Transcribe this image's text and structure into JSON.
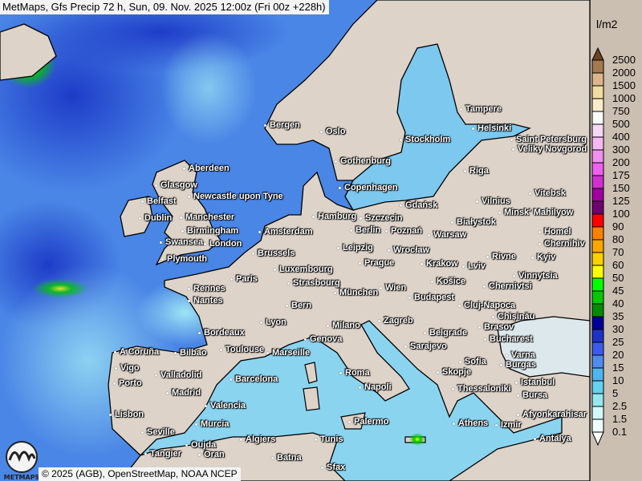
{
  "title": "MetMaps, Gfs Precip 72 h, Sun, 09. Nov. 2025 12:00z (Fri 00z +228h)",
  "copyright": "© 2025 (AGB), OpenStreetMap, NOAA NCEP",
  "logo_text": "METMAPS",
  "legend": {
    "unit": "l/m2",
    "top_arrow_color": "#6b4422",
    "bottom_arrow_color": "#ffffff",
    "labels": [
      "2500",
      "2000",
      "1500",
      "1000",
      "750",
      "500",
      "400",
      "300",
      "200",
      "175",
      "150",
      "125",
      "100",
      "90",
      "80",
      "70",
      "60",
      "50",
      "45",
      "40",
      "35",
      "30",
      "25",
      "20",
      "15",
      "10",
      "5",
      "2.5",
      "1.5",
      "0.1"
    ],
    "colors": [
      "#a57a50",
      "#dcb68a",
      "#f0dca0",
      "#f8eccc",
      "#fafafa",
      "#f5d8f5",
      "#f4b8f4",
      "#f090f0",
      "#ee60ee",
      "#d030d0",
      "#a000a0",
      "#700070",
      "#ff0000",
      "#ff7f00",
      "#ffa500",
      "#ffd000",
      "#ffff00",
      "#00ff00",
      "#00c800",
      "#008c00",
      "#000096",
      "#1e32c8",
      "#3c5af0",
      "#508cf0",
      "#50b4f0",
      "#64d2f0",
      "#96e6f0",
      "#d2f8f8",
      "#eefefe"
    ]
  },
  "colors": {
    "land": "#ddd3c9",
    "ocean_precip": "#3f7fe0",
    "light_precip": "#8fd8f0"
  },
  "cities": [
    "Bergen",
    "Oslo",
    "Tampere",
    "Helsinki",
    "Saint Petersburg",
    "Stockholm",
    "Veliky Novgorod",
    "Aberdeen",
    "Gothenburg",
    "Riga",
    "Glasgow",
    "Newcastle upon Tyne",
    "Copenhagen",
    "Vilnius",
    "Vitebsk",
    "Belfast",
    "Gdańsk",
    "Minsk' Mahilyow",
    "Dublin",
    "Manchester",
    "Hamburg",
    "Szczecin",
    "Białystok",
    "Birmingham",
    "Amsterdam",
    "Berlin",
    "Poznań",
    "Warsaw",
    "Homel",
    "Swansea",
    "London",
    "Leipzig",
    "Wrocław",
    "Chernihiv",
    "Plymouth",
    "Brussels",
    "Prague",
    "Krakow",
    "Lviv",
    "Rivne",
    "Kyiv",
    "Luxembourg",
    "Vinnytsia",
    "Paris",
    "Strasbourg",
    "München",
    "Wien",
    "Košice",
    "Chernivtsi",
    "Rennes",
    "Budapest",
    "Nantes",
    "Cluj-Napoca",
    "Chișinău",
    "Bern",
    "Lyon",
    "Milano",
    "Brasov",
    "Zagreb",
    "Bordeaux",
    "Genova",
    "Belgrade",
    "Bucharest",
    "Toulouse",
    "Marseille",
    "Sarajevo",
    "A Coruña",
    "Bilbao",
    "Varna",
    "Sofia",
    "Burgas",
    "Skopje",
    "Vigo",
    "Roma",
    "Valladolid",
    "Barcelona",
    "Istanbul",
    "Porto",
    "Napoli",
    "Thessaloniki",
    "Bursa",
    "Madrid",
    "Afyonkarahisar",
    "Valencia",
    "Lisbon",
    "Izmir",
    "Athens",
    "Murcia",
    "Palermo",
    "Seville",
    "Antalya",
    "Algiers",
    "Tunis",
    "Tangier",
    "Oran",
    "Batna",
    "Sfax",
    "Oujda"
  ]
}
